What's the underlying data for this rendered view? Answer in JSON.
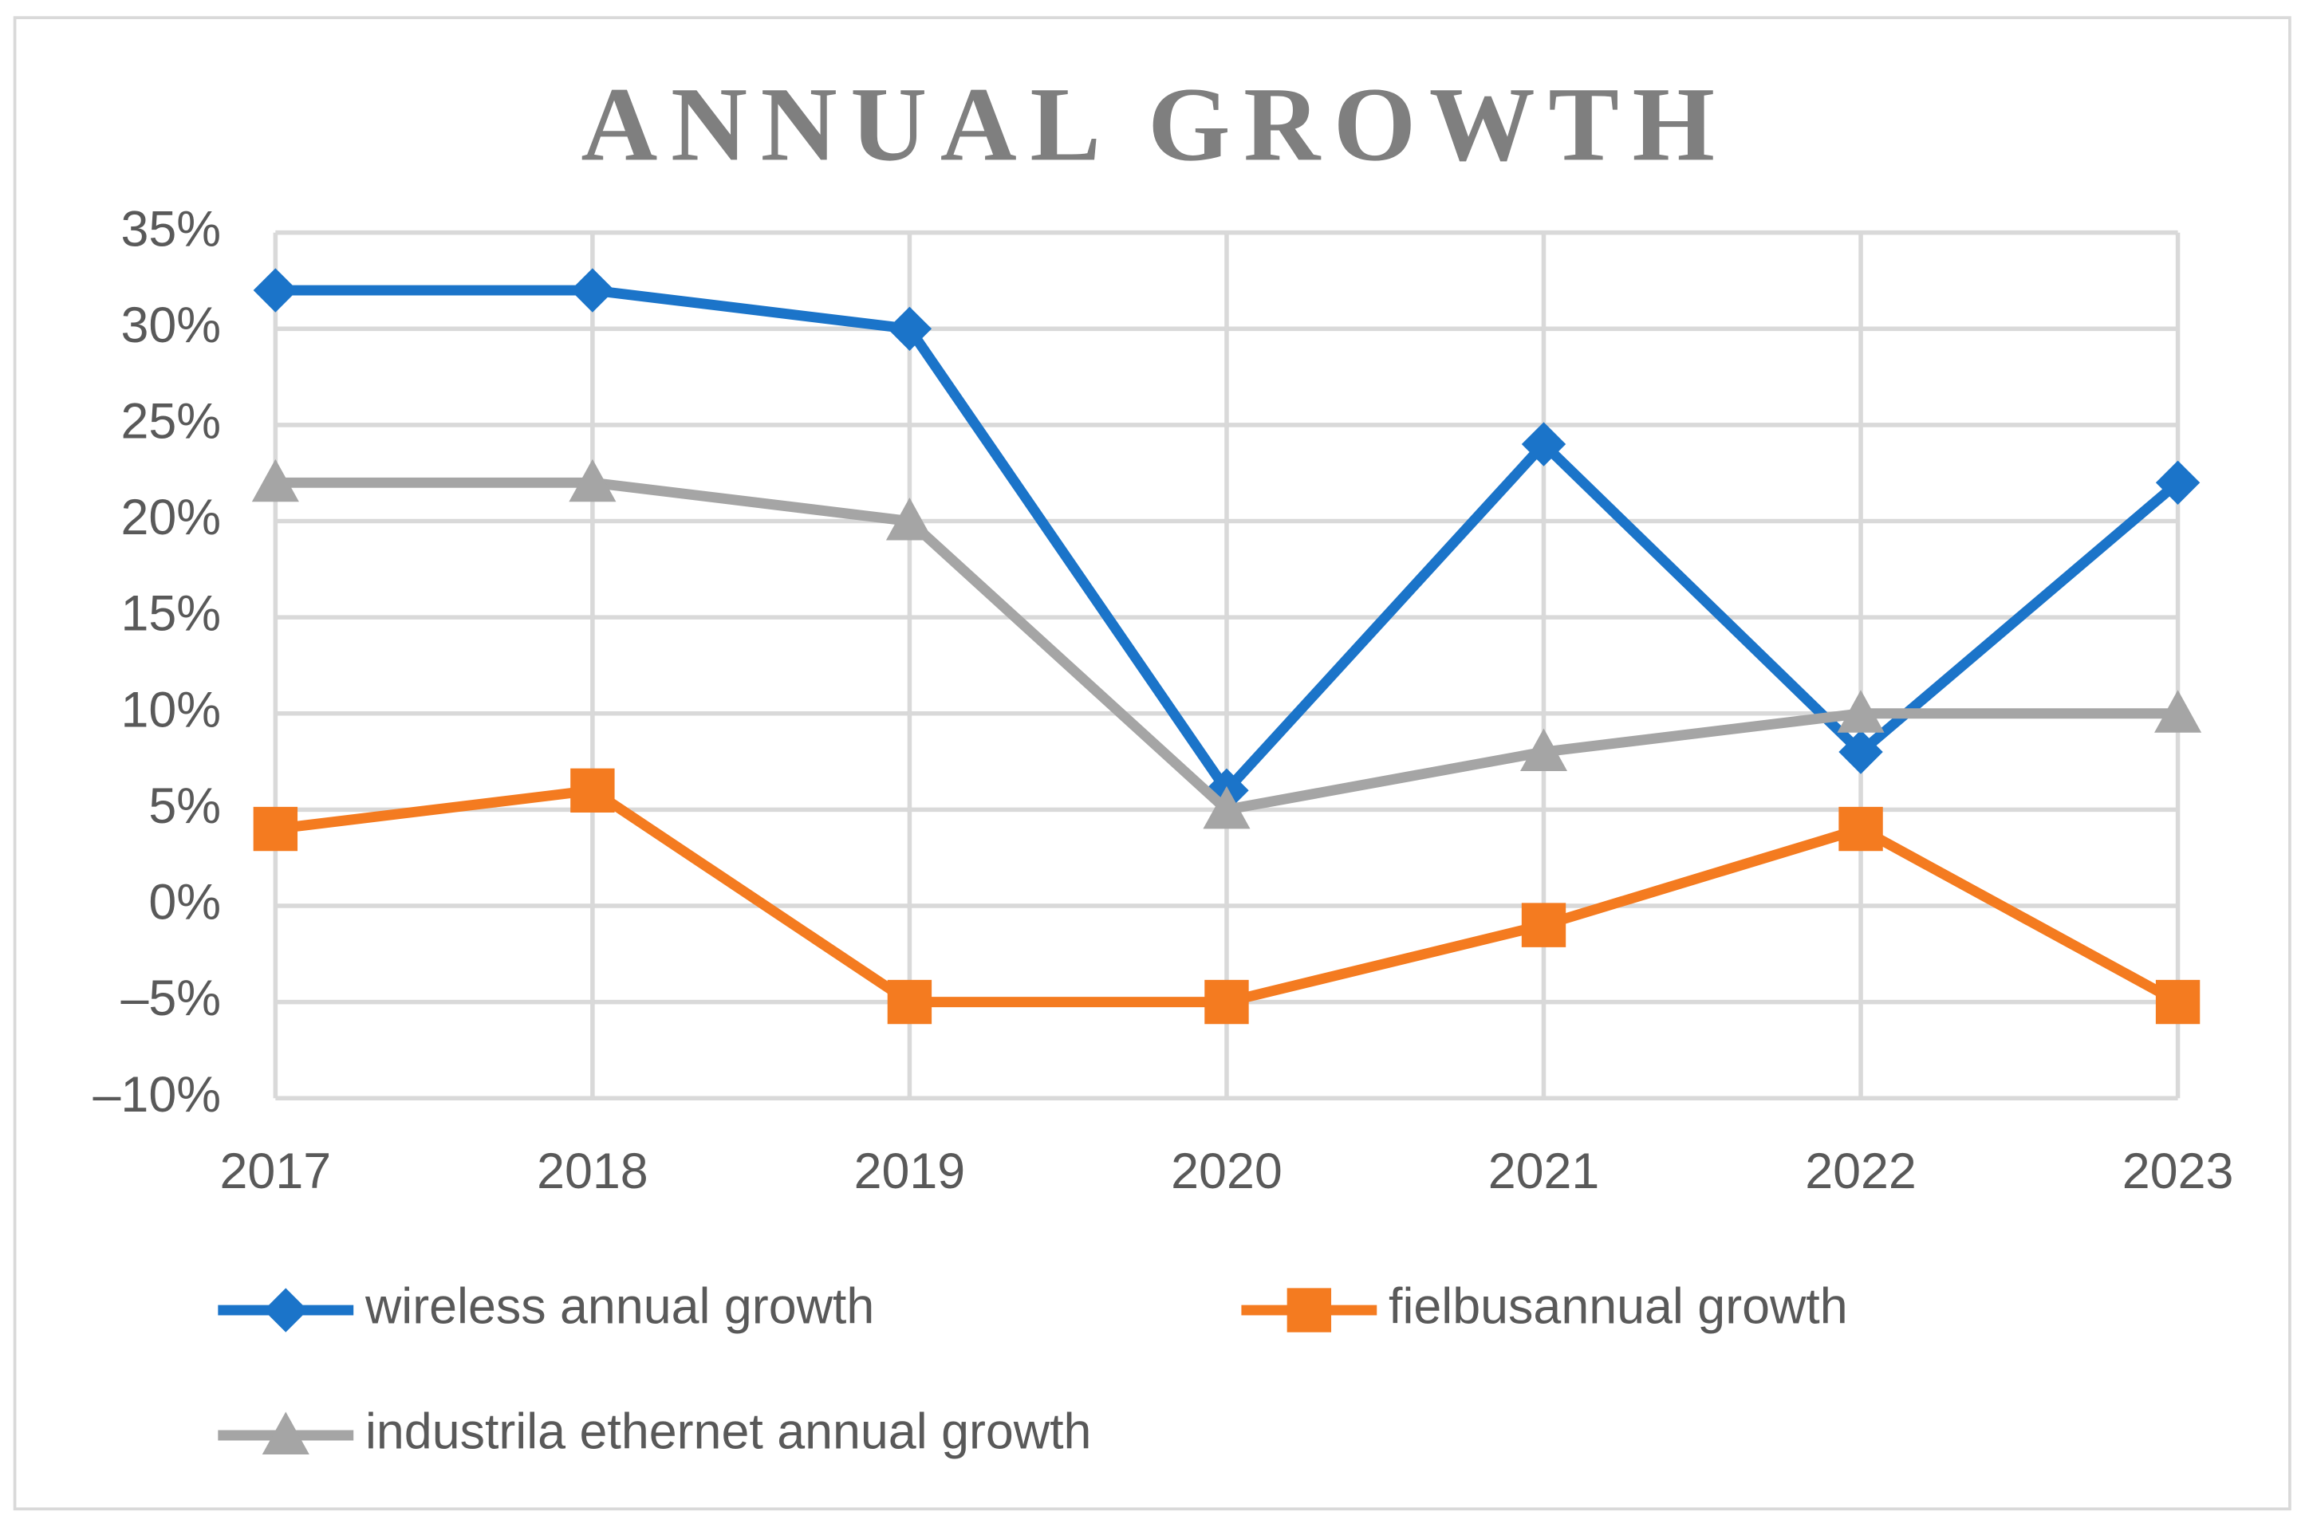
{
  "chart_data": {
    "type": "line",
    "title": "ANNUAL GROWTH",
    "categories": [
      "2017",
      "2018",
      "2019",
      "2020",
      "2021",
      "2022",
      "2023"
    ],
    "series": [
      {
        "name": "wireless annual growth",
        "color": "#1b74c9",
        "marker": "diamond",
        "values": [
          32,
          32,
          30,
          6,
          24,
          8,
          22
        ]
      },
      {
        "name": "fielbusannual growth",
        "color": "#f47b20",
        "marker": "square",
        "values": [
          4,
          6,
          -5,
          -5,
          -1,
          4,
          -5
        ]
      },
      {
        "name": "industrila ethernet annual growth",
        "color": "#a5a5a5",
        "marker": "triangle",
        "values": [
          22,
          22,
          20,
          5,
          8,
          10,
          10
        ]
      }
    ],
    "ylim": [
      -10,
      35
    ],
    "yticks": [
      {
        "value": -10,
        "label": "–10%"
      },
      {
        "value": -5,
        "label": "–5%"
      },
      {
        "value": 0,
        "label": "0%"
      },
      {
        "value": 5,
        "label": "5%"
      },
      {
        "value": 10,
        "label": "10%"
      },
      {
        "value": 15,
        "label": "15%"
      },
      {
        "value": 20,
        "label": "20%"
      },
      {
        "value": 25,
        "label": "25%"
      },
      {
        "value": 30,
        "label": "30%"
      },
      {
        "value": 35,
        "label": "35%"
      }
    ],
    "grid": true,
    "legend": "bottom"
  }
}
